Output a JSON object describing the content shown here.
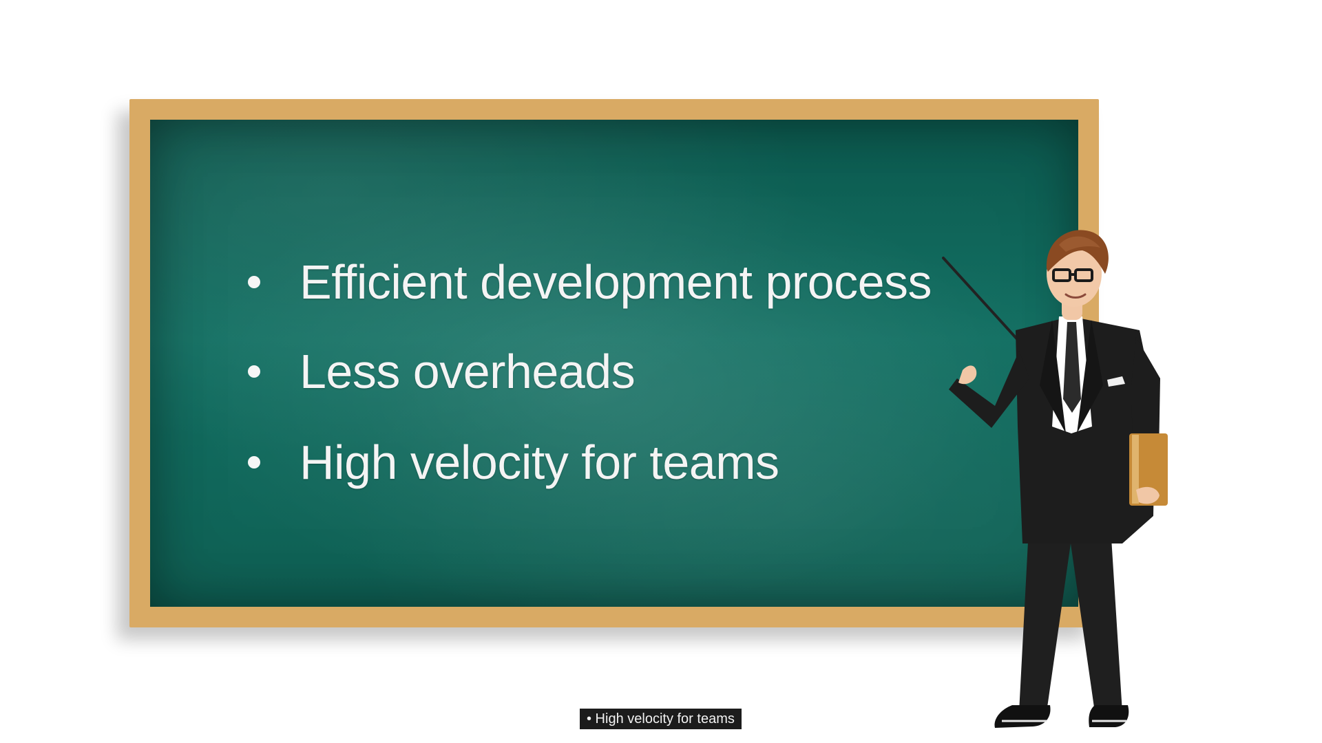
{
  "slide": {
    "bullets": [
      "Efficient development process",
      "Less overheads",
      "High velocity for teams"
    ],
    "caption": "• High velocity for teams"
  },
  "colors": {
    "board_green": "#137063",
    "frame_wood": "#d9aa64",
    "caption_bg": "#1c1c1c",
    "text_white": "#f4f4f4"
  },
  "icons": {
    "bullet": "bullet-dot-icon",
    "presenter": "teacher-with-pointer-icon"
  }
}
